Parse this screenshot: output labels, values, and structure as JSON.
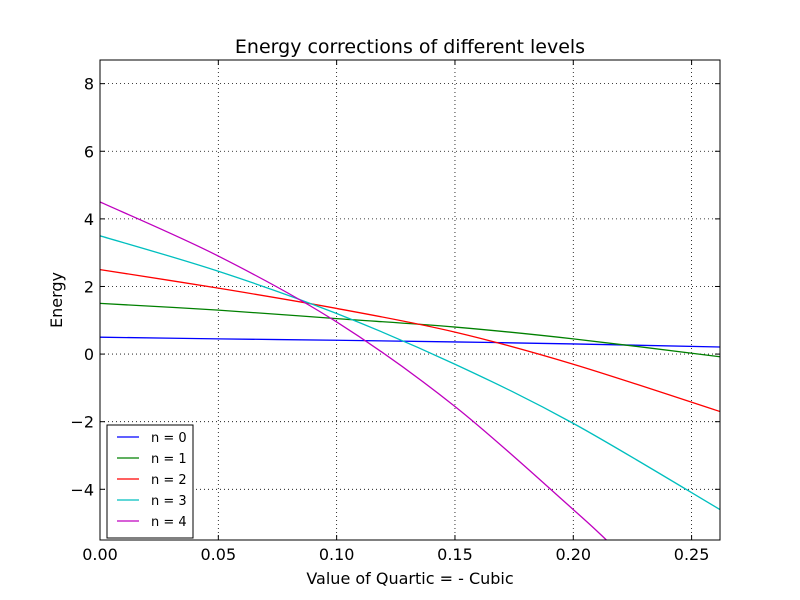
{
  "chart_data": {
    "type": "line",
    "title": "Energy corrections of different levels",
    "xlabel": "Value of Quartic = - Cubic",
    "ylabel": "Energy",
    "xlim": [
      0.0,
      0.262
    ],
    "ylim": [
      -5.5,
      8.7
    ],
    "xticks": [
      0.0,
      0.05,
      0.1,
      0.15,
      0.2,
      0.25
    ],
    "xtick_labels": [
      "0.00",
      "0.05",
      "0.10",
      "0.15",
      "0.20",
      "0.25"
    ],
    "yticks": [
      -4,
      -2,
      0,
      2,
      4,
      6,
      8
    ],
    "ytick_labels": [
      "−4",
      "−2",
      "0",
      "2",
      "4",
      "6",
      "8"
    ],
    "grid": true,
    "legend_position": "lower-left",
    "series": [
      {
        "name": "n = 0",
        "color": "#0000ff",
        "x": [
          0.0,
          0.05,
          0.1,
          0.15,
          0.2,
          0.262
        ],
        "y": [
          0.5,
          0.45,
          0.41,
          0.36,
          0.3,
          0.21
        ]
      },
      {
        "name": "n = 1",
        "color": "#008000",
        "x": [
          0.0,
          0.05,
          0.1,
          0.15,
          0.2,
          0.262
        ],
        "y": [
          1.5,
          1.3,
          1.05,
          0.8,
          0.45,
          -0.08
        ]
      },
      {
        "name": "n = 2",
        "color": "#ff0000",
        "x": [
          0.0,
          0.05,
          0.1,
          0.15,
          0.2,
          0.262
        ],
        "y": [
          2.5,
          1.95,
          1.35,
          0.65,
          -0.3,
          -1.7
        ]
      },
      {
        "name": "n = 3",
        "color": "#00bfbf",
        "x": [
          0.0,
          0.05,
          0.1,
          0.15,
          0.2,
          0.262
        ],
        "y": [
          3.5,
          2.45,
          1.2,
          -0.3,
          -2.05,
          -4.6
        ]
      },
      {
        "name": "n = 4",
        "color": "#bf00bf",
        "x": [
          0.0,
          0.05,
          0.1,
          0.15,
          0.2,
          0.214
        ],
        "y": [
          4.5,
          2.9,
          0.95,
          -1.55,
          -4.6,
          -5.5
        ]
      }
    ]
  }
}
